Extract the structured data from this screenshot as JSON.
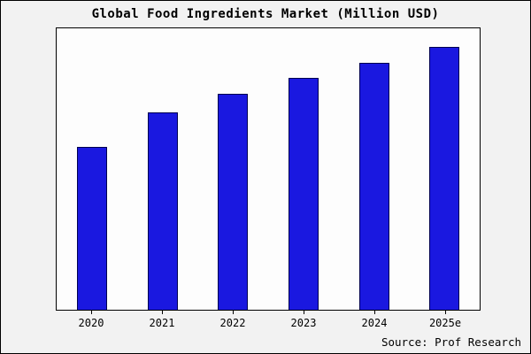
{
  "title": "Global Food Ingredients Market (Million USD)",
  "source": "Source: Prof Research",
  "colors": {
    "bar_fill": "#1a18e0",
    "bar_border": "#000050",
    "frame_background": "#f2f2f2",
    "plot_background": "#fdfdfd",
    "border": "#000000"
  },
  "chart_data": {
    "type": "bar",
    "title": "Global Food Ingredients Market (Million USD)",
    "categories": [
      "2020",
      "2021",
      "2022",
      "2023",
      "2024",
      "2025e"
    ],
    "values": [
      62,
      75,
      82,
      88,
      94,
      100
    ],
    "xlabel": "",
    "ylabel": "",
    "ylim": [
      0,
      107
    ],
    "grid": false,
    "legend": false,
    "annotation": "Source: Prof Research"
  }
}
